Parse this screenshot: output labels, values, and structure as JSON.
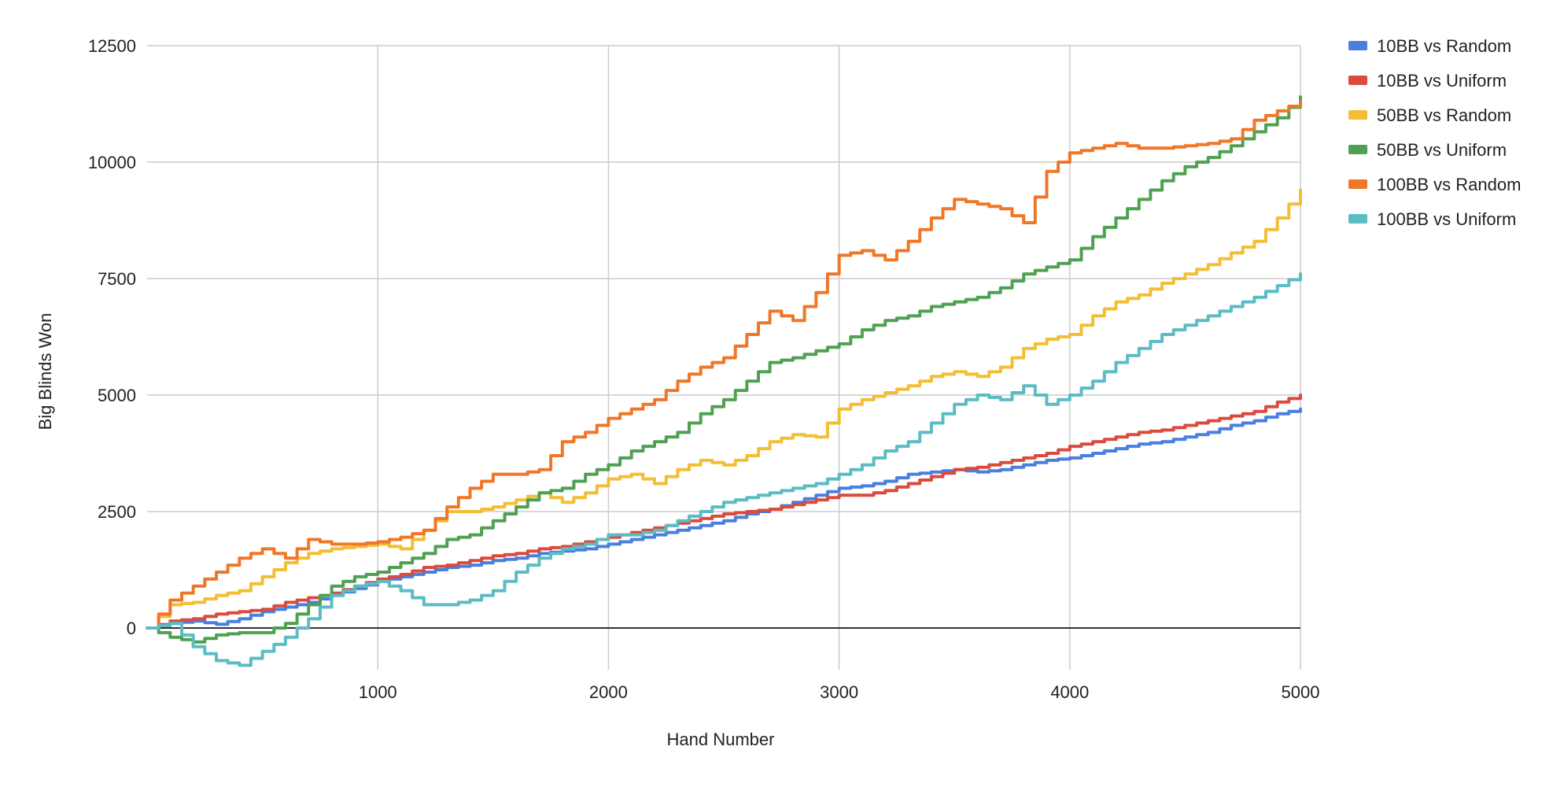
{
  "chart_data": {
    "type": "line",
    "title": "",
    "xlabel": "Hand Number",
    "ylabel": "Big Blinds Won",
    "xlim": [
      0,
      5000
    ],
    "ylim": [
      -900,
      12500
    ],
    "x_ticks": [
      1000,
      2000,
      3000,
      4000,
      5000
    ],
    "y_ticks": [
      0,
      2500,
      5000,
      7500,
      10000,
      12500
    ],
    "x_tick_labels": [
      "1000",
      "2000",
      "3000",
      "4000",
      "5000"
    ],
    "y_tick_labels": [
      "0",
      "2500",
      "5000",
      "7500",
      "10000",
      "12500"
    ],
    "grid": true,
    "legend_position": "right",
    "x": [
      0,
      100,
      200,
      300,
      400,
      500,
      600,
      700,
      800,
      900,
      1000,
      1100,
      1200,
      1300,
      1400,
      1500,
      1600,
      1700,
      1800,
      1900,
      2000,
      2100,
      2200,
      2300,
      2400,
      2500,
      2600,
      2700,
      2800,
      2900,
      3000,
      3100,
      3200,
      3300,
      3400,
      3500,
      3600,
      3700,
      3800,
      3900,
      4000,
      4100,
      4200,
      4300,
      4400,
      4500,
      4600,
      4700,
      4800,
      4900,
      5000
    ],
    "series": [
      {
        "name": "10BB vs Random",
        "color": "#4a7fe0",
        "values": [
          0,
          100,
          150,
          80,
          200,
          350,
          450,
          550,
          700,
          850,
          1000,
          1100,
          1200,
          1300,
          1350,
          1450,
          1500,
          1600,
          1650,
          1700,
          1800,
          1900,
          2000,
          2100,
          2200,
          2300,
          2450,
          2550,
          2700,
          2850,
          3000,
          3050,
          3150,
          3300,
          3350,
          3400,
          3350,
          3400,
          3500,
          3600,
          3650,
          3750,
          3850,
          3950,
          4000,
          4100,
          4200,
          4350,
          4450,
          4600,
          4700
        ]
      },
      {
        "name": "10BB vs Uniform",
        "color": "#d94c3d",
        "values": [
          0,
          150,
          200,
          300,
          350,
          400,
          550,
          650,
          750,
          900,
          1050,
          1150,
          1300,
          1350,
          1450,
          1550,
          1600,
          1700,
          1750,
          1850,
          1950,
          2050,
          2150,
          2250,
          2350,
          2450,
          2500,
          2550,
          2650,
          2750,
          2850,
          2850,
          2950,
          3100,
          3250,
          3400,
          3450,
          3550,
          3650,
          3750,
          3900,
          4000,
          4100,
          4200,
          4250,
          4350,
          4450,
          4550,
          4650,
          4850,
          5000
        ]
      },
      {
        "name": "50BB vs Random",
        "color": "#f3be34",
        "values": [
          0,
          500,
          550,
          700,
          800,
          1100,
          1400,
          1600,
          1700,
          1750,
          1800,
          1700,
          2100,
          2500,
          2500,
          2600,
          2750,
          2900,
          2700,
          2900,
          3200,
          3300,
          3100,
          3400,
          3600,
          3500,
          3700,
          4000,
          4150,
          4100,
          4700,
          4900,
          5050,
          5200,
          5400,
          5500,
          5400,
          5600,
          6000,
          6200,
          6300,
          6700,
          7000,
          7150,
          7400,
          7600,
          7800,
          8050,
          8300,
          8800,
          9400
        ]
      },
      {
        "name": "50BB vs Uniform",
        "color": "#4fa152",
        "values": [
          0,
          -200,
          -300,
          -150,
          -100,
          -100,
          100,
          500,
          900,
          1100,
          1200,
          1400,
          1600,
          1900,
          2000,
          2300,
          2600,
          2900,
          3000,
          3300,
          3500,
          3800,
          4000,
          4200,
          4600,
          4900,
          5300,
          5700,
          5800,
          5950,
          6100,
          6400,
          6600,
          6700,
          6900,
          7000,
          7100,
          7300,
          7600,
          7750,
          7900,
          8400,
          8800,
          9200,
          9600,
          9900,
          10100,
          10350,
          10650,
          10950,
          11400
        ]
      },
      {
        "name": "100BB vs Random",
        "color": "#ef7727",
        "values": [
          0,
          600,
          900,
          1200,
          1500,
          1700,
          1500,
          1900,
          1800,
          1800,
          1850,
          1950,
          2100,
          2600,
          3000,
          3300,
          3300,
          3400,
          4000,
          4200,
          4500,
          4700,
          4900,
          5300,
          5600,
          5800,
          6300,
          6800,
          6600,
          7200,
          8000,
          8100,
          7900,
          8300,
          8800,
          9200,
          9100,
          9000,
          8700,
          9800,
          10200,
          10300,
          10400,
          10300,
          10300,
          10350,
          10400,
          10500,
          10900,
          11100,
          11300
        ]
      },
      {
        "name": "100BB vs Uniform",
        "color": "#5bbcc4",
        "values": [
          0,
          100,
          -400,
          -700,
          -800,
          -500,
          -200,
          200,
          700,
          900,
          1000,
          800,
          500,
          500,
          600,
          800,
          1200,
          1500,
          1700,
          1800,
          2000,
          2000,
          2100,
          2300,
          2500,
          2700,
          2800,
          2900,
          3000,
          3100,
          3300,
          3500,
          3800,
          4000,
          4400,
          4800,
          5000,
          4900,
          5200,
          4800,
          5000,
          5300,
          5700,
          6000,
          6300,
          6500,
          6700,
          6900,
          7100,
          7350,
          7600
        ]
      }
    ]
  }
}
